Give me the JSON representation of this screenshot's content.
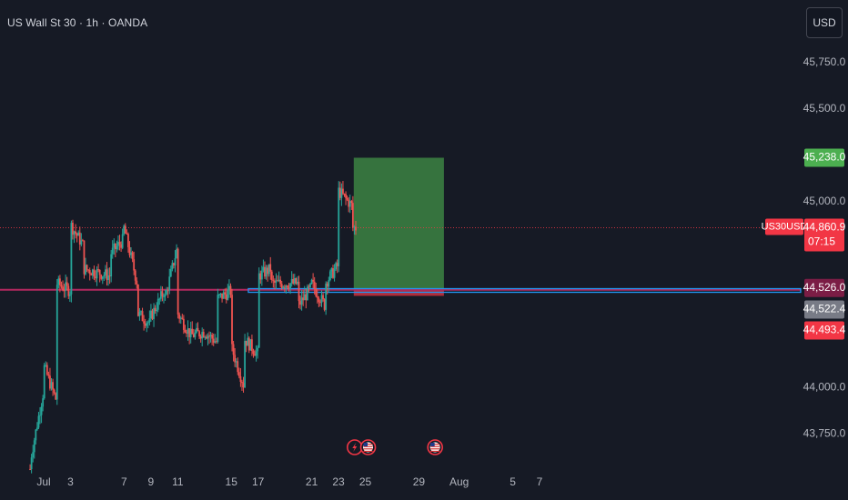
{
  "header": {
    "title": "US Wall St 30 · 1h · OANDA",
    "currency_button": "USD"
  },
  "colors": {
    "background": "#161a25",
    "up": "#26a69a",
    "down": "#ef5350",
    "price_line": "#f23645",
    "support_line": "#b3275f",
    "horizontal_ray": "#2196f3",
    "profit_zone": "#4caf50",
    "loss_zone": "#f23645"
  },
  "chart_data": {
    "type": "candlestick",
    "symbol_label": "US30USD",
    "ylim": [
      43540,
      46000
    ],
    "y_ticks": [
      {
        "value": 45750,
        "label": "45,750.0"
      },
      {
        "value": 45500,
        "label": "45,500.0"
      },
      {
        "value": 45000,
        "label": "45,000.0"
      },
      {
        "value": 44000,
        "label": "44,000.0"
      },
      {
        "value": 43750,
        "label": "43,750.0"
      }
    ],
    "x_ticks": [
      {
        "date": "2025-07-01",
        "label": "Jul"
      },
      {
        "date": "2025-07-03",
        "label": "3"
      },
      {
        "date": "2025-07-07",
        "label": "7"
      },
      {
        "date": "2025-07-09",
        "label": "9"
      },
      {
        "date": "2025-07-11",
        "label": "11"
      },
      {
        "date": "2025-07-15",
        "label": "15"
      },
      {
        "date": "2025-07-17",
        "label": "17"
      },
      {
        "date": "2025-07-21",
        "label": "21"
      },
      {
        "date": "2025-07-23",
        "label": "23"
      },
      {
        "date": "2025-07-25",
        "label": "25"
      },
      {
        "date": "2025-07-29",
        "label": "29"
      },
      {
        "date": "2025-08-01",
        "label": "Aug"
      },
      {
        "date": "2025-08-05",
        "label": "5"
      },
      {
        "date": "2025-08-07",
        "label": "7"
      }
    ],
    "price_path": [
      [
        "2025-06-30",
        43560
      ],
      [
        "2025-06-30",
        43600
      ],
      [
        "2025-07-01",
        43980
      ],
      [
        "2025-07-01",
        44120
      ],
      [
        "2025-07-02",
        43920
      ],
      [
        "2025-07-02",
        44060
      ],
      [
        "2025-07-02",
        44380
      ],
      [
        "2025-07-02",
        44560
      ],
      [
        "2025-07-03",
        44520
      ],
      [
        "2025-07-03",
        44680
      ],
      [
        "2025-07-03",
        44880
      ],
      [
        "2025-07-04",
        44760
      ],
      [
        "2025-07-04",
        44640
      ],
      [
        "2025-07-06",
        44600
      ],
      [
        "2025-07-06",
        44720
      ],
      [
        "2025-07-07",
        44800
      ],
      [
        "2025-07-07",
        44740
      ],
      [
        "2025-07-07",
        44860
      ],
      [
        "2025-07-08",
        44560
      ],
      [
        "2025-07-08",
        44300
      ],
      [
        "2025-07-08",
        44400
      ],
      [
        "2025-07-09",
        44340
      ],
      [
        "2025-07-09",
        44260
      ],
      [
        "2025-07-09",
        44380
      ],
      [
        "2025-07-10",
        44520
      ],
      [
        "2025-07-10",
        44420
      ],
      [
        "2025-07-10",
        44460
      ],
      [
        "2025-07-11",
        44760
      ],
      [
        "2025-07-11",
        44580
      ],
      [
        "2025-07-11",
        44400
      ],
      [
        "2025-07-12",
        44280
      ],
      [
        "2025-07-13",
        44300
      ],
      [
        "2025-07-14",
        44240
      ],
      [
        "2025-07-14",
        44380
      ],
      [
        "2025-07-14",
        44480
      ],
      [
        "2025-07-15",
        44520
      ],
      [
        "2025-07-15",
        44420
      ],
      [
        "2025-07-15",
        44220
      ],
      [
        "2025-07-16",
        44000
      ],
      [
        "2025-07-16",
        43960
      ],
      [
        "2025-07-16",
        44160
      ],
      [
        "2025-07-16",
        44260
      ],
      [
        "2025-07-17",
        44180
      ],
      [
        "2025-07-17",
        44300
      ],
      [
        "2025-07-17",
        44440
      ],
      [
        "2025-07-17",
        44600
      ],
      [
        "2025-07-18",
        44640
      ],
      [
        "2025-07-18",
        44560
      ],
      [
        "2025-07-20",
        44560
      ],
      [
        "2025-07-20",
        44360
      ],
      [
        "2025-07-20",
        44440
      ],
      [
        "2025-07-21",
        44540
      ],
      [
        "2025-07-21",
        44480
      ],
      [
        "2025-07-21",
        44560
      ],
      [
        "2025-07-22",
        44440
      ],
      [
        "2025-07-22",
        44380
      ],
      [
        "2025-07-22",
        44420
      ],
      [
        "2025-07-22",
        44560
      ],
      [
        "2025-07-23",
        44660
      ],
      [
        "2025-07-23",
        44760
      ],
      [
        "2025-07-23",
        44900
      ],
      [
        "2025-07-23",
        45060
      ],
      [
        "2025-07-24",
        44980
      ],
      [
        "2025-07-24",
        44920
      ],
      [
        "2025-07-24",
        44861
      ]
    ],
    "lines": [
      {
        "name": "resistance-support",
        "value": 44526
      },
      {
        "name": "horizontal-ray",
        "value": 44522.4,
        "from": "2025-07-16"
      }
    ],
    "position_tool": {
      "from": "2025-07-24",
      "to": "2025-07-31",
      "target": 45238.0,
      "entry": 44526.0,
      "stop": 44493.4
    },
    "current_price": {
      "value": 44860.9,
      "label": "44,860.9",
      "countdown": "07:15"
    },
    "price_labels": [
      {
        "value": 45238.0,
        "label": "45,238.0",
        "role": "target"
      },
      {
        "value": 44526.0,
        "label": "44,526.0",
        "role": "entry"
      },
      {
        "value": 44522.4,
        "label": "44,522.4",
        "role": "ray"
      },
      {
        "value": 44493.4,
        "label": "44,493.4",
        "role": "stop"
      }
    ],
    "events": [
      {
        "date": "2025-07-24",
        "icon": "lightning-icon"
      },
      {
        "date": "2025-07-25",
        "icon": "us-flag-icon"
      },
      {
        "date": "2025-07-30",
        "icon": "us-flag-icon"
      }
    ]
  }
}
